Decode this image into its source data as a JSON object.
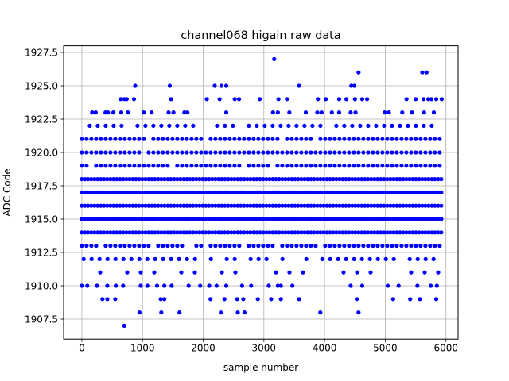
{
  "chart_data": {
    "type": "scatter",
    "title": "channel068 higain raw data",
    "xlabel": "sample number",
    "ylabel": "ADC Code",
    "xlim": [
      -300,
      6200
    ],
    "ylim": [
      1906.0,
      1928.0
    ],
    "x_ticks": [
      0,
      1000,
      2000,
      3000,
      4000,
      5000,
      6000
    ],
    "x_tick_labels": [
      "0",
      "1000",
      "2000",
      "3000",
      "4000",
      "5000",
      "6000"
    ],
    "y_ticks": [
      1907.5,
      1910.0,
      1912.5,
      1915.0,
      1917.5,
      1920.0,
      1922.5,
      1925.0,
      1927.5
    ],
    "y_tick_labels": [
      "1907.5",
      "1910.0",
      "1912.5",
      "1915.0",
      "1917.5",
      "1920.0",
      "1922.5",
      "1925.0",
      "1927.5"
    ],
    "grid": true,
    "marker_color": "#0000ff",
    "series": [
      {
        "name": "",
        "levels": [
          {
            "y": 1914,
            "x_range": [
              0,
              5950
            ],
            "density": "solid"
          },
          {
            "y": 1915,
            "x_range": [
              0,
              5950
            ],
            "density": "solid"
          },
          {
            "y": 1916,
            "x_range": [
              0,
              5950
            ],
            "density": "solid"
          },
          {
            "y": 1917,
            "x_range": [
              0,
              5950
            ],
            "density": "solid"
          },
          {
            "y": 1918,
            "x_range": [
              0,
              5950
            ],
            "density": "solid"
          },
          {
            "y": 1913,
            "x_range": [
              0,
              5950
            ],
            "density": "dense"
          },
          {
            "y": 1919,
            "x_range": [
              0,
              5950
            ],
            "density": "dense"
          },
          {
            "y": 1920,
            "x_range": [
              0,
              5950
            ],
            "density": "dense"
          },
          {
            "y": 1921,
            "x_range": [
              0,
              5950
            ],
            "density": "dense"
          },
          {
            "y": 1912,
            "x_range": [
              30,
              5950
            ],
            "density": "medium"
          },
          {
            "y": 1922,
            "x_range": [
              0,
              5950
            ],
            "density": "medium"
          },
          {
            "y": 1911,
            "x_range": [
              80,
              5900
            ],
            "density": "sparse"
          }
        ],
        "sparse_points": [
          [
            0,
            1910
          ],
          [
            90,
            1910
          ],
          [
            250,
            1910
          ],
          [
            420,
            1910
          ],
          [
            560,
            1910
          ],
          [
            680,
            1910
          ],
          [
            970,
            1910
          ],
          [
            1080,
            1910
          ],
          [
            1240,
            1910
          ],
          [
            1360,
            1910
          ],
          [
            1480,
            1910
          ],
          [
            1760,
            1910
          ],
          [
            1950,
            1910
          ],
          [
            2100,
            1910
          ],
          [
            2220,
            1910
          ],
          [
            2380,
            1910
          ],
          [
            2640,
            1910
          ],
          [
            2790,
            1910
          ],
          [
            3080,
            1910
          ],
          [
            3230,
            1910
          ],
          [
            3280,
            1910
          ],
          [
            3470,
            1910
          ],
          [
            4430,
            1910
          ],
          [
            4620,
            1910
          ],
          [
            5040,
            1910
          ],
          [
            5220,
            1910
          ],
          [
            5530,
            1910
          ],
          [
            5750,
            1910
          ],
          [
            5850,
            1910
          ],
          [
            340,
            1909
          ],
          [
            420,
            1909
          ],
          [
            550,
            1909
          ],
          [
            1300,
            1909
          ],
          [
            1360,
            1909
          ],
          [
            2120,
            1909
          ],
          [
            2350,
            1909
          ],
          [
            2560,
            1909
          ],
          [
            2660,
            1909
          ],
          [
            2900,
            1909
          ],
          [
            3120,
            1909
          ],
          [
            3280,
            1909
          ],
          [
            3580,
            1909
          ],
          [
            4530,
            1909
          ],
          [
            5130,
            1909
          ],
          [
            5410,
            1909
          ],
          [
            5570,
            1909
          ],
          [
            5840,
            1909
          ],
          [
            950,
            1908
          ],
          [
            1310,
            1908
          ],
          [
            1610,
            1908
          ],
          [
            2290,
            1908
          ],
          [
            2570,
            1908
          ],
          [
            2680,
            1908
          ],
          [
            3930,
            1908
          ],
          [
            4560,
            1908
          ],
          [
            700,
            1907
          ],
          [
            170,
            1923
          ],
          [
            230,
            1923
          ],
          [
            390,
            1923
          ],
          [
            430,
            1923
          ],
          [
            520,
            1923
          ],
          [
            650,
            1923
          ],
          [
            760,
            1923
          ],
          [
            1020,
            1923
          ],
          [
            1150,
            1923
          ],
          [
            1430,
            1923
          ],
          [
            1510,
            1923
          ],
          [
            1690,
            1923
          ],
          [
            1740,
            1923
          ],
          [
            2380,
            1923
          ],
          [
            3150,
            1923
          ],
          [
            3230,
            1923
          ],
          [
            3420,
            1923
          ],
          [
            3690,
            1923
          ],
          [
            3880,
            1923
          ],
          [
            3950,
            1923
          ],
          [
            4120,
            1923
          ],
          [
            4240,
            1923
          ],
          [
            4430,
            1923
          ],
          [
            4510,
            1923
          ],
          [
            4990,
            1923
          ],
          [
            5060,
            1923
          ],
          [
            5280,
            1923
          ],
          [
            5440,
            1923
          ],
          [
            5640,
            1923
          ],
          [
            5800,
            1923
          ],
          [
            640,
            1924
          ],
          [
            700,
            1924
          ],
          [
            740,
            1924
          ],
          [
            860,
            1924
          ],
          [
            1470,
            1924
          ],
          [
            2060,
            1924
          ],
          [
            2270,
            1924
          ],
          [
            2520,
            1924
          ],
          [
            2590,
            1924
          ],
          [
            2930,
            1924
          ],
          [
            3240,
            1924
          ],
          [
            3380,
            1924
          ],
          [
            3890,
            1924
          ],
          [
            4020,
            1924
          ],
          [
            4240,
            1924
          ],
          [
            4360,
            1924
          ],
          [
            4500,
            1924
          ],
          [
            4620,
            1924
          ],
          [
            4700,
            1924
          ],
          [
            5350,
            1924
          ],
          [
            5500,
            1924
          ],
          [
            5630,
            1924
          ],
          [
            5710,
            1924
          ],
          [
            5760,
            1924
          ],
          [
            5840,
            1924
          ],
          [
            5930,
            1924
          ],
          [
            880,
            1925
          ],
          [
            1450,
            1925
          ],
          [
            2190,
            1925
          ],
          [
            2300,
            1925
          ],
          [
            2380,
            1925
          ],
          [
            3580,
            1925
          ],
          [
            4440,
            1925
          ],
          [
            4490,
            1925
          ],
          [
            4560,
            1926
          ],
          [
            5610,
            1926
          ],
          [
            5680,
            1926
          ],
          [
            3170,
            1927
          ]
        ]
      }
    ]
  }
}
